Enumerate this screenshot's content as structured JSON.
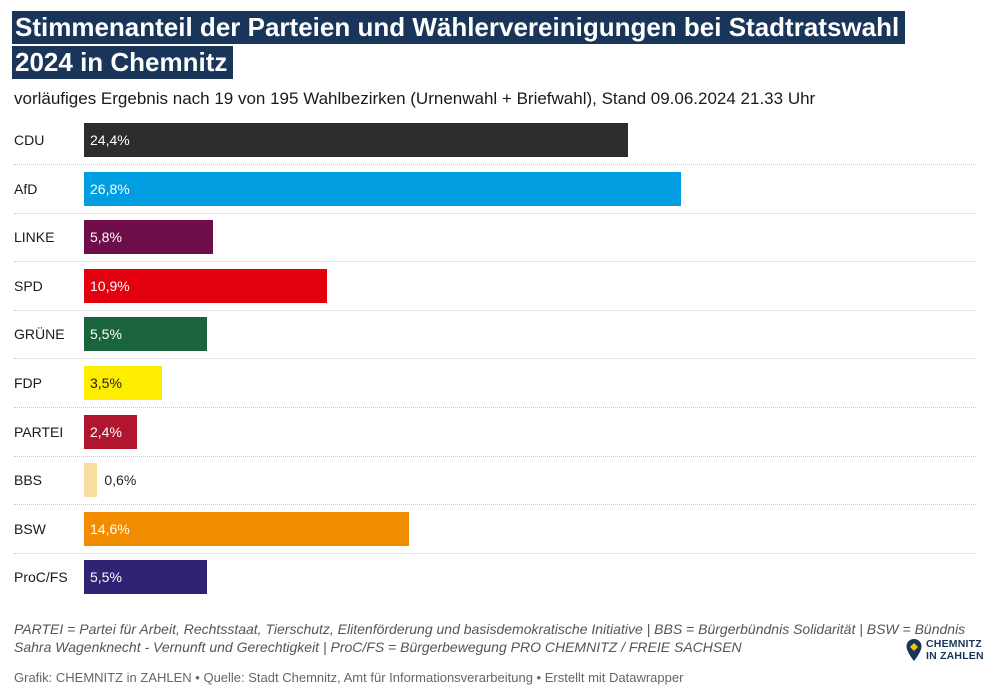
{
  "title": "Stimmenanteil der Parteien und Wählervereinigungen bei Stadtratswahl 2024 in Chemnitz",
  "subtitle": "vorläufiges Ergebnis nach 19 von 195 Wahlbezirken (Urnenwahl + Briefwahl), Stand 09.06.2024 21.33 Uhr",
  "note": "PARTEI = Partei für Arbeit, Rechtsstaat, Tierschutz, Elitenförderung und basisdemokratische Initiative | BBS = Bürgerbündnis Solidarität | BSW = Bündnis Sahra Wagenknecht - Vernunft und Gerechtigkeit | ProC/FS = Bürgerbewegung PRO CHEMNITZ / FREIE SACHSEN",
  "footer": "Grafik: CHEMNITZ in ZAHLEN • Quelle: Stadt Chemnitz, Amt für Informationsverarbeitung • Erstellt mit Datawrapper",
  "logo": {
    "line1": "CHEMNITZ",
    "line2": "IN ZAHLEN",
    "icon": "chemnitz-map-pin-logo",
    "color": "#19365a"
  },
  "chart_data": {
    "type": "bar",
    "orientation": "horizontal",
    "categories": [
      "CDU",
      "AfD",
      "LINKE",
      "SPD",
      "GRÜNE",
      "FDP",
      "PARTEI",
      "BBS",
      "BSW",
      "ProC/FS"
    ],
    "values": [
      24.4,
      26.8,
      5.8,
      10.9,
      5.5,
      3.5,
      2.4,
      0.6,
      14.6,
      5.5
    ],
    "labels": [
      "24,4%",
      "26,8%",
      "5,8%",
      "10,9%",
      "5,5%",
      "3,5%",
      "2,4%",
      "0,6%",
      "14,6%",
      "5,5%"
    ],
    "colors": [
      "#2d2d2d",
      "#009ee0",
      "#6d0d4a",
      "#e3000f",
      "#19643a",
      "#ffed00",
      "#b0172e",
      "#f8dd9f",
      "#f28c00",
      "#2e2473"
    ],
    "label_colors": [
      "#ffffff",
      "#ffffff",
      "#ffffff",
      "#ffffff",
      "#ffffff",
      "#222222",
      "#ffffff",
      "#222222",
      "#ffffff",
      "#ffffff"
    ],
    "xlim": [
      0,
      26.8
    ],
    "grid": false,
    "legend": "none"
  }
}
